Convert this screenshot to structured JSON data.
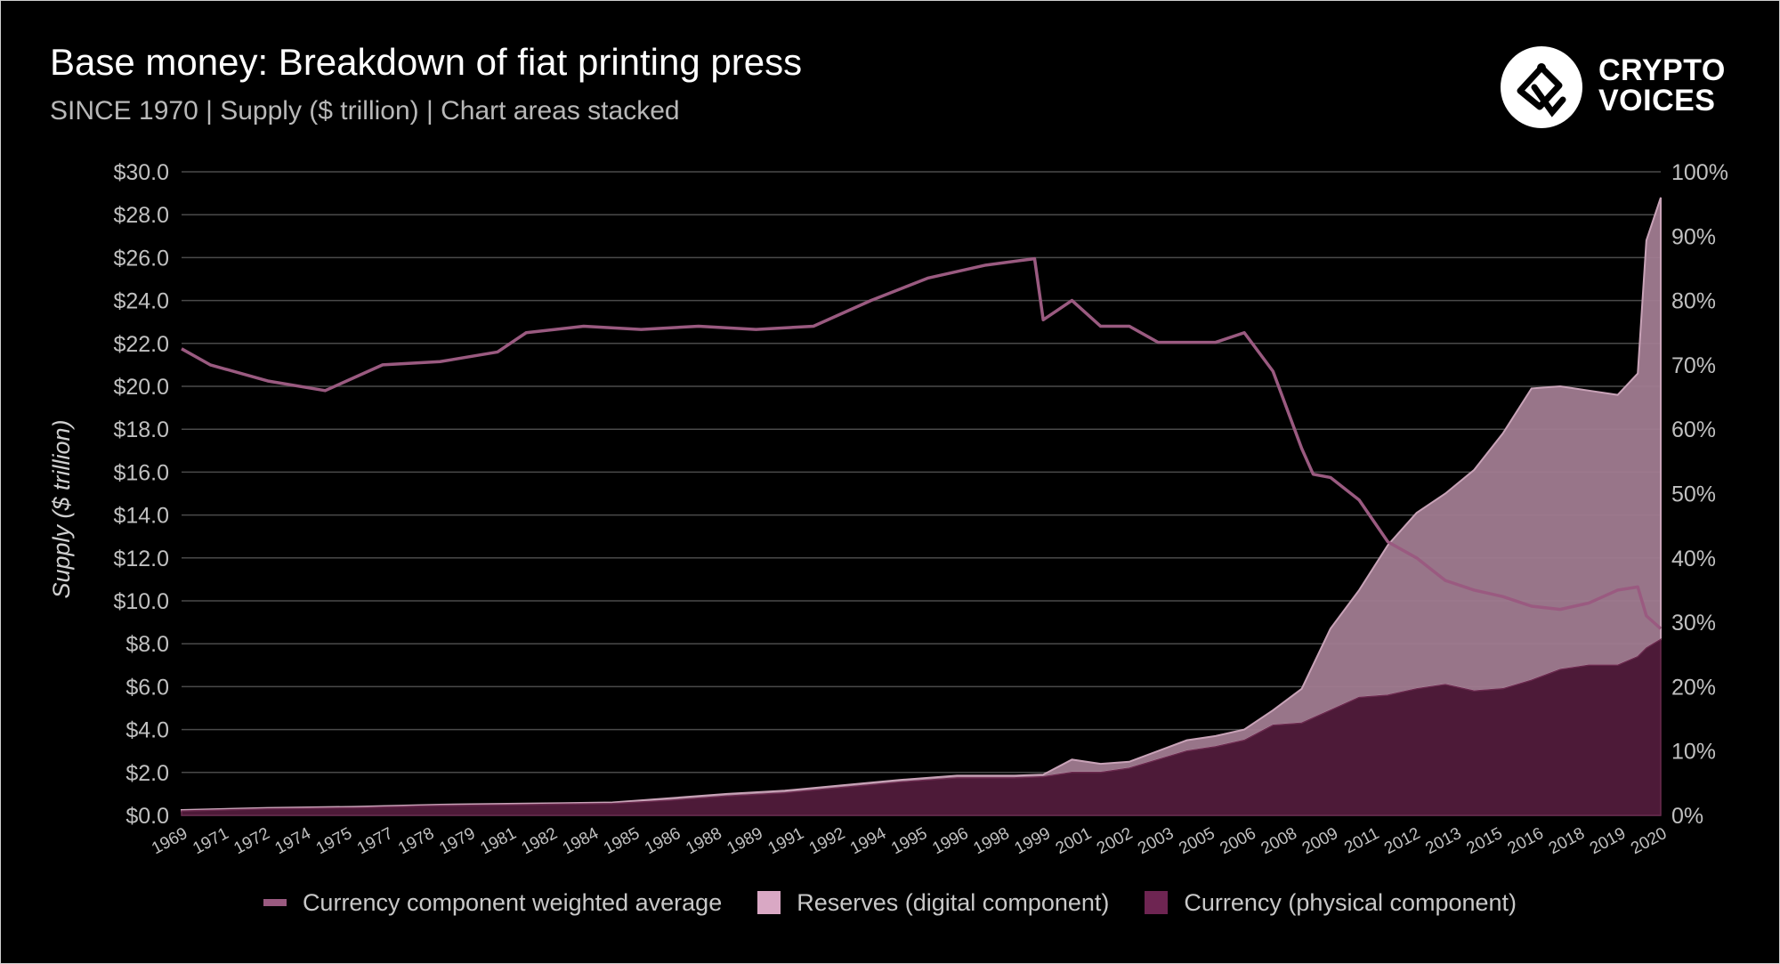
{
  "header": {
    "title": "Base money: Breakdown of fiat printing press",
    "subtitle": "SINCE 1970 | Supply ($ trillion) | Chart areas stacked"
  },
  "logo": {
    "text": "CRYPTO\nVOICES",
    "icon": "crypto-voices-logo-icon"
  },
  "colors": {
    "background": "#000000",
    "currency_area": "#4d1a38",
    "reserves_area": "#a07b90",
    "weighted_line": "#9a5a80",
    "reserves_legend": "#d9a8c4",
    "currency_legend": "#6e2552",
    "grid": "#4a4a4a",
    "tick": "#c0c0c0"
  },
  "chart_data": {
    "type": "area",
    "stacked": true,
    "ylabel": "Supply ($ trillion)",
    "ylim": [
      0,
      30
    ],
    "y2lim": [
      0,
      100
    ],
    "yticks": [
      "$0.0",
      "$2.0",
      "$4.0",
      "$6.0",
      "$8.0",
      "$10.0",
      "$12.0",
      "$14.0",
      "$16.0",
      "$18.0",
      "$20.0",
      "$22.0",
      "$24.0",
      "$26.0",
      "$28.0",
      "$30.0"
    ],
    "y2ticks": [
      "0%",
      "10%",
      "20%",
      "30%",
      "40%",
      "50%",
      "60%",
      "70%",
      "80%",
      "90%",
      "100%"
    ],
    "xticks": [
      "1969",
      "1971",
      "1972",
      "1974",
      "1975",
      "1977",
      "1978",
      "1979",
      "1981",
      "1982",
      "1984",
      "1985",
      "1986",
      "1988",
      "1989",
      "1991",
      "1992",
      "1994",
      "1995",
      "1996",
      "1998",
      "1999",
      "2001",
      "2002",
      "2003",
      "2005",
      "2006",
      "2008",
      "2009",
      "2011",
      "2012",
      "2013",
      "2015",
      "2016",
      "2018",
      "2019",
      "2020"
    ],
    "grid": true,
    "legend_position": "bottom",
    "x": [
      1969,
      1972,
      1975,
      1978,
      1981,
      1984,
      1986,
      1988,
      1990,
      1992,
      1994,
      1996,
      1998,
      1999,
      2000,
      2001,
      2002,
      2003,
      2004,
      2005,
      2006,
      2007,
      2008,
      2009,
      2010,
      2011,
      2012,
      2013,
      2014,
      2015,
      2016,
      2017,
      2018,
      2019,
      2019.7,
      2020,
      2020.5
    ],
    "series": [
      {
        "name": "Currency (physical component)",
        "axis": "left",
        "values": [
          0.2,
          0.3,
          0.35,
          0.45,
          0.5,
          0.55,
          0.7,
          0.9,
          1.05,
          1.3,
          1.55,
          1.75,
          1.75,
          1.8,
          2.0,
          2.0,
          2.2,
          2.6,
          3.0,
          3.2,
          3.5,
          4.2,
          4.3,
          4.9,
          5.5,
          5.6,
          5.9,
          6.1,
          5.8,
          5.9,
          6.3,
          6.8,
          7.0,
          7.0,
          7.4,
          7.8,
          8.2
        ]
      },
      {
        "name": "Reserves (digital component)",
        "axis": "left",
        "values": [
          0.05,
          0.05,
          0.05,
          0.05,
          0.05,
          0.05,
          0.1,
          0.1,
          0.1,
          0.1,
          0.1,
          0.1,
          0.1,
          0.1,
          0.6,
          0.4,
          0.3,
          0.4,
          0.5,
          0.5,
          0.5,
          0.7,
          1.6,
          3.8,
          5.0,
          7.0,
          8.2,
          8.9,
          10.3,
          11.9,
          13.6,
          13.2,
          12.8,
          12.6,
          13.2,
          19.0,
          20.6
        ]
      },
      {
        "name": "Currency component weighted average",
        "axis": "right",
        "x": [
          1969,
          1970,
          1972,
          1974,
          1976,
          1978,
          1980,
          1981,
          1983,
          1985,
          1987,
          1989,
          1991,
          1993,
          1995,
          1997,
          1998.7,
          1999,
          2000,
          2001,
          2002,
          2003,
          2004,
          2005,
          2006,
          2007,
          2008,
          2008.4,
          2009,
          2010,
          2011,
          2012,
          2013,
          2014,
          2015,
          2016,
          2017,
          2018,
          2019,
          2019.7,
          2020,
          2020.5
        ],
        "values": [
          72.5,
          70,
          67.5,
          66,
          70,
          70.5,
          72,
          75,
          76,
          75.5,
          76,
          75.5,
          76,
          80,
          83.5,
          85.5,
          86.5,
          77,
          80,
          76,
          76,
          73.5,
          73.5,
          73.5,
          75,
          69,
          57,
          53,
          52.5,
          49,
          42.5,
          40,
          36.5,
          35,
          34,
          32.5,
          32,
          33,
          35,
          35.5,
          31,
          29
        ]
      }
    ]
  },
  "legend": {
    "items": [
      {
        "label": "Currency component weighted average"
      },
      {
        "label": "Reserves (digital component)"
      },
      {
        "label": "Currency (physical component)"
      }
    ]
  }
}
